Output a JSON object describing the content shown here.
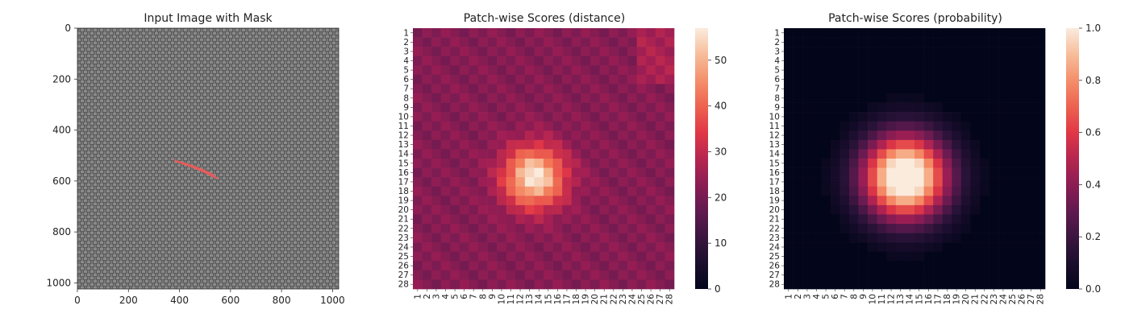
{
  "chart_data": [
    {
      "type": "image",
      "title": "Input Image with Mask",
      "xlabel": "",
      "ylabel": "",
      "xlim": [
        0,
        1024
      ],
      "ylim": [
        1024,
        0
      ],
      "xticks": [
        "0",
        "200",
        "400",
        "600",
        "800",
        "1000"
      ],
      "yticks": [
        "0",
        "200",
        "400",
        "600",
        "800",
        "1000"
      ],
      "xtick_values": [
        0,
        200,
        400,
        600,
        800,
        1000
      ],
      "ytick_values": [
        0,
        200,
        400,
        600,
        800,
        1000
      ],
      "background": "#5c5c5c",
      "mask": {
        "color": "#f05a5a",
        "points": [
          [
            375,
            515
          ],
          [
            430,
            530
          ],
          [
            480,
            548
          ],
          [
            525,
            568
          ],
          [
            555,
            592
          ],
          [
            540,
            590
          ],
          [
            490,
            565
          ],
          [
            440,
            545
          ],
          [
            385,
            525
          ]
        ]
      }
    },
    {
      "type": "heatmap",
      "title": "Patch-wise Scores (distance)",
      "xlabel": "",
      "ylabel": "",
      "rows": [
        "1",
        "2",
        "3",
        "4",
        "5",
        "6",
        "7",
        "8",
        "9",
        "10",
        "11",
        "12",
        "13",
        "14",
        "15",
        "16",
        "17",
        "18",
        "19",
        "20",
        "21",
        "22",
        "23",
        "24",
        "25",
        "26",
        "27",
        "28"
      ],
      "cols": [
        "1",
        "2",
        "3",
        "4",
        "5",
        "6",
        "7",
        "8",
        "9",
        "10",
        "11",
        "12",
        "13",
        "14",
        "15",
        "16",
        "17",
        "18",
        "19",
        "20",
        "21",
        "22",
        "23",
        "24",
        "25",
        "26",
        "27",
        "28"
      ],
      "colorbar": {
        "min": 0,
        "max": 57,
        "ticks": [
          0,
          10,
          20,
          30,
          40,
          50
        ]
      },
      "background_level": 22,
      "peak": {
        "row": 16.5,
        "col": 13.5,
        "value": 57,
        "sigma": 2.3
      }
    },
    {
      "type": "heatmap",
      "title": "Patch-wise Scores (probability)",
      "xlabel": "",
      "ylabel": "",
      "rows": [
        "1",
        "2",
        "3",
        "4",
        "5",
        "6",
        "7",
        "8",
        "9",
        "10",
        "11",
        "12",
        "13",
        "14",
        "15",
        "16",
        "17",
        "18",
        "19",
        "20",
        "21",
        "22",
        "23",
        "24",
        "25",
        "26",
        "27",
        "28"
      ],
      "cols": [
        "1",
        "2",
        "3",
        "4",
        "5",
        "6",
        "7",
        "8",
        "9",
        "10",
        "11",
        "12",
        "13",
        "14",
        "15",
        "16",
        "17",
        "18",
        "19",
        "20",
        "21",
        "22",
        "23",
        "24",
        "25",
        "26",
        "27",
        "28"
      ],
      "colorbar": {
        "min": 0.0,
        "max": 1.0,
        "ticks": [
          0.0,
          0.2,
          0.4,
          0.6,
          0.8,
          1.0
        ],
        "tick_labels": [
          "0.0",
          "0.2",
          "0.4",
          "0.6",
          "0.8",
          "1.0"
        ]
      },
      "background_level": 0.0,
      "peak": {
        "row": 16.5,
        "col": 13.5,
        "value": 0.95,
        "sigma": 3.2
      }
    }
  ]
}
